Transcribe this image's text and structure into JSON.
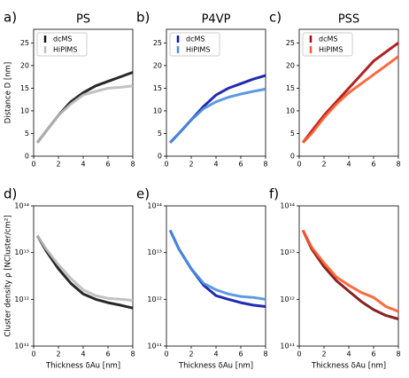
{
  "chart_data": [
    {
      "type": "line",
      "panel_label": "a)",
      "title": "PS",
      "ylabel": "Distance D [nm]",
      "legend": "upper left",
      "x": [
        0.3,
        1,
        2,
        3,
        4,
        5,
        6,
        7,
        8
      ],
      "series": [
        {
          "name": "dcMS",
          "color": "#111111",
          "values": [
            3,
            5.5,
            9,
            12,
            14,
            15.5,
            16.5,
            17.5,
            18.5
          ]
        },
        {
          "name": "HiPIMS",
          "color": "#bbbbbb",
          "values": [
            3,
            5.5,
            9,
            11.5,
            13.5,
            14.3,
            15,
            15.2,
            15.5
          ]
        }
      ],
      "xlim": [
        0,
        8
      ],
      "xticks": [
        0,
        2,
        4,
        6,
        8
      ],
      "ylim": [
        0,
        28
      ],
      "yticks": [
        0,
        5,
        10,
        15,
        20,
        25
      ]
    },
    {
      "type": "line",
      "panel_label": "b)",
      "title": "P4VP",
      "legend": "upper left",
      "x": [
        0.3,
        1,
        2,
        3,
        4,
        5,
        6,
        7,
        8
      ],
      "series": [
        {
          "name": "dcMS",
          "color": "#0a14a8",
          "values": [
            3,
            5,
            8,
            11,
            13.5,
            15,
            16,
            17,
            17.8
          ]
        },
        {
          "name": "HiPIMS",
          "color": "#4a8fe0",
          "values": [
            3,
            5,
            8,
            10.5,
            12,
            13,
            13.7,
            14.3,
            14.8
          ]
        }
      ],
      "xlim": [
        0,
        8
      ],
      "xticks": [
        0,
        2,
        4,
        6,
        8
      ],
      "ylim": [
        0,
        28
      ],
      "yticks": [
        0,
        5,
        10,
        15,
        20,
        25
      ]
    },
    {
      "type": "line",
      "panel_label": "c)",
      "title": "PSS",
      "legend": "upper left",
      "x": [
        0.3,
        1,
        2,
        3,
        4,
        5,
        6,
        7,
        8
      ],
      "series": [
        {
          "name": "dcMS",
          "color": "#a80a0a",
          "values": [
            3,
            5.5,
            9,
            12,
            15,
            18,
            21,
            23,
            25
          ]
        },
        {
          "name": "HiPIMS",
          "color": "#ff5a28",
          "values": [
            3,
            5,
            8.5,
            11.5,
            14,
            16,
            18,
            20,
            22
          ]
        }
      ],
      "xlim": [
        0,
        8
      ],
      "xticks": [
        0,
        2,
        4,
        6,
        8
      ],
      "ylim": [
        0,
        28
      ],
      "yticks": [
        0,
        5,
        10,
        15,
        20,
        25
      ]
    },
    {
      "type": "line",
      "panel_label": "d)",
      "ylabel": "Cluster density ρ [NCluster/cm²]",
      "xlabel": "Thickness δAu [nm]",
      "log_y": true,
      "x": [
        0.3,
        1,
        2,
        3,
        4,
        5,
        6,
        7,
        8
      ],
      "series": [
        {
          "color": "#111111",
          "values": [
            23000000000000.0,
            11000000000000.0,
            4500000000000.0,
            2200000000000.0,
            1300000000000.0,
            1000000000000.0,
            850000000000.0,
            750000000000.0,
            650000000000.0
          ]
        },
        {
          "color": "#bbbbbb",
          "values": [
            23000000000000.0,
            12000000000000.0,
            5500000000000.0,
            2800000000000.0,
            1600000000000.0,
            1200000000000.0,
            1050000000000.0,
            1000000000000.0,
            950000000000.0
          ]
        }
      ],
      "xlim": [
        0,
        8
      ],
      "xticks": [
        0,
        2,
        4,
        6,
        8
      ],
      "ylim": [
        100000000000.0,
        100000000000000.0
      ],
      "yticks": [
        {
          "value": 100000000000.0,
          "label": "10¹¹"
        },
        {
          "value": 1000000000000.0,
          "label": "10¹²"
        },
        {
          "value": 10000000000000.0,
          "label": "10¹³"
        },
        {
          "value": 100000000000000.0,
          "label": "10¹⁴"
        }
      ]
    },
    {
      "type": "line",
      "panel_label": "e)",
      "xlabel": "Thickness δAu [nm]",
      "log_y": true,
      "x": [
        0.3,
        1,
        2,
        3,
        4,
        5,
        6,
        7,
        8
      ],
      "series": [
        {
          "color": "#0a14a8",
          "values": [
            30000000000000.0,
            12000000000000.0,
            4500000000000.0,
            2000000000000.0,
            1200000000000.0,
            1000000000000.0,
            850000000000.0,
            750000000000.0,
            700000000000.0
          ]
        },
        {
          "color": "#4a8fe0",
          "values": [
            30000000000000.0,
            12000000000000.0,
            4500000000000.0,
            2200000000000.0,
            1600000000000.0,
            1300000000000.0,
            1150000000000.0,
            1100000000000.0,
            1000000000000.0
          ]
        }
      ],
      "xlim": [
        0,
        8
      ],
      "xticks": [
        0,
        2,
        4,
        6,
        8
      ],
      "ylim": [
        100000000000.0,
        100000000000000.0
      ],
      "yticks": [
        {
          "value": 100000000000.0,
          "label": "10¹¹"
        },
        {
          "value": 1000000000000.0,
          "label": "10¹²"
        },
        {
          "value": 10000000000000.0,
          "label": "10¹³"
        },
        {
          "value": 100000000000000.0,
          "label": "10¹⁴"
        }
      ]
    },
    {
      "type": "line",
      "panel_label": "f)",
      "xlabel": "Thickness δAu [nm]",
      "log_y": true,
      "x": [
        0.3,
        1,
        2,
        3,
        4,
        5,
        6,
        7,
        8
      ],
      "series": [
        {
          "color": "#7a0a0a",
          "values": [
            30000000000000.0,
            12000000000000.0,
            5000000000000.0,
            2500000000000.0,
            1500000000000.0,
            900000000000.0,
            600000000000.0,
            450000000000.0,
            380000000000.0
          ]
        },
        {
          "color": "#ff5a28",
          "values": [
            30000000000000.0,
            13000000000000.0,
            6000000000000.0,
            3000000000000.0,
            2000000000000.0,
            1400000000000.0,
            1100000000000.0,
            700000000000.0,
            550000000000.0
          ]
        }
      ],
      "xlim": [
        0,
        8
      ],
      "xticks": [
        0,
        2,
        4,
        6,
        8
      ],
      "ylim": [
        100000000000.0,
        100000000000000.0
      ],
      "yticks": [
        {
          "value": 100000000000.0,
          "label": "10¹¹"
        },
        {
          "value": 1000000000000.0,
          "label": "10¹²"
        },
        {
          "value": 10000000000000.0,
          "label": "10¹³"
        },
        {
          "value": 100000000000000.0,
          "label": "10¹⁴"
        }
      ]
    }
  ]
}
